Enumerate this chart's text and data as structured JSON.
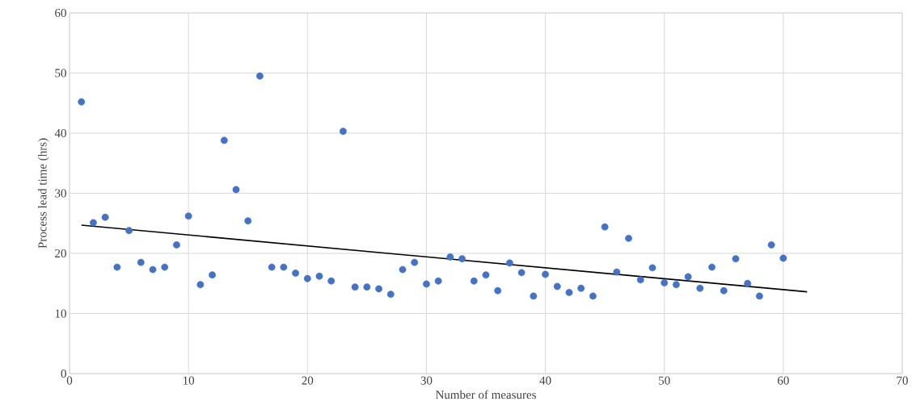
{
  "chart_data": {
    "type": "scatter",
    "xlabel": "Number of measures",
    "ylabel": "Process lead time (hrs)",
    "xlim": [
      0,
      70
    ],
    "ylim": [
      0,
      60
    ],
    "xticks": [
      0,
      10,
      20,
      30,
      40,
      50,
      60,
      70
    ],
    "yticks": [
      0,
      10,
      20,
      30,
      40,
      50,
      60
    ],
    "grid": true,
    "x": [
      1,
      2,
      3,
      4,
      5,
      6,
      7,
      8,
      9,
      10,
      11,
      12,
      13,
      14,
      15,
      16,
      17,
      18,
      19,
      20,
      21,
      22,
      23,
      24,
      25,
      26,
      27,
      28,
      29,
      30,
      31,
      32,
      33,
      34,
      35,
      36,
      37,
      38,
      39,
      40,
      41,
      42,
      43,
      44,
      45,
      46,
      47,
      48,
      49,
      50,
      51,
      52,
      53,
      54,
      55,
      56,
      57,
      58,
      59,
      60
    ],
    "series": [
      {
        "color": "#4472c4",
        "marker": "circle",
        "values": [
          45.2,
          25.1,
          26,
          17.7,
          23.8,
          18.5,
          17.3,
          17.7,
          21.4,
          26.2,
          14.8,
          16.4,
          38.8,
          30.6,
          25.4,
          49.5,
          17.7,
          17.7,
          16.7,
          15.8,
          16.2,
          15.4,
          40.3,
          14.4,
          14.4,
          14.1,
          13.2,
          17.3,
          18.5,
          14.9,
          15.4,
          19.4,
          19.1,
          15.4,
          16.4,
          13.8,
          18.4,
          16.8,
          12.9,
          16.5,
          14.5,
          13.5,
          14.2,
          12.9,
          24.4,
          16.9,
          22.5,
          15.6,
          17.6,
          15.1,
          14.8,
          16.1,
          14.2,
          17.7,
          13.8,
          19.1,
          15.0,
          12.9,
          21.4,
          19.2
        ]
      },
      {
        "type": "line",
        "color": "#000000",
        "marker": "none",
        "x": [
          1,
          62
        ],
        "values": [
          24.7,
          13.6
        ]
      }
    ]
  }
}
